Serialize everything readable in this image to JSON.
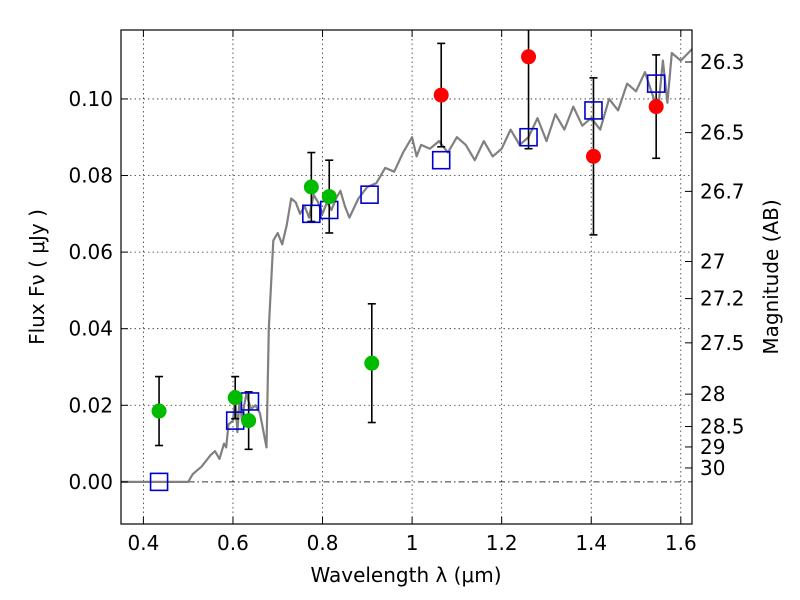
{
  "chart_data": {
    "type": "scatter",
    "xlabel": "Wavelength  λ (μm)",
    "ylabel": "Flux  Fν  ( μJy )",
    "y2label": "Magnitude (AB)",
    "xlim": [
      0.35,
      1.625
    ],
    "ylim": [
      -0.011,
      0.118
    ],
    "grid": true,
    "x_ticks": [
      {
        "value": 0.4,
        "label": "0.4"
      },
      {
        "value": 0.6,
        "label": "0.6"
      },
      {
        "value": 0.8,
        "label": "0.8"
      },
      {
        "value": 1.0,
        "label": "1"
      },
      {
        "value": 1.2,
        "label": "1.2"
      },
      {
        "value": 1.4,
        "label": "1.4"
      },
      {
        "value": 1.6,
        "label": "1.6"
      }
    ],
    "y_ticks": [
      {
        "value": 0.0,
        "label": "0.00"
      },
      {
        "value": 0.02,
        "label": "0.02"
      },
      {
        "value": 0.04,
        "label": "0.04"
      },
      {
        "value": 0.06,
        "label": "0.06"
      },
      {
        "value": 0.08,
        "label": "0.08"
      },
      {
        "value": 0.1,
        "label": "0.10"
      }
    ],
    "magnitude_ticks": [
      {
        "mag": 26.3,
        "label": "26.3"
      },
      {
        "mag": 26.5,
        "label": "26.5"
      },
      {
        "mag": 26.7,
        "label": "26.7"
      },
      {
        "mag": 27.0,
        "label": "27"
      },
      {
        "mag": 27.2,
        "label": "27.2"
      },
      {
        "mag": 27.5,
        "label": "27.5"
      },
      {
        "mag": 28.0,
        "label": "28"
      },
      {
        "mag": 28.5,
        "label": "28.5"
      },
      {
        "mag": 29.0,
        "label": "29"
      },
      {
        "mag": 30.0,
        "label": "30"
      }
    ],
    "colors": {
      "model": "#808080",
      "green": "#00bb00",
      "red": "#ff0000",
      "square": "#0000cc",
      "errorbar": "#000000"
    },
    "model_spectrum": {
      "x": [
        0.35,
        0.5,
        0.51,
        0.53,
        0.55,
        0.56,
        0.57,
        0.58,
        0.585,
        0.59,
        0.6,
        0.605,
        0.61,
        0.615,
        0.62,
        0.625,
        0.63,
        0.64,
        0.65,
        0.66,
        0.665,
        0.67,
        0.675,
        0.68,
        0.69,
        0.7,
        0.71,
        0.72,
        0.73,
        0.74,
        0.75,
        0.76,
        0.77,
        0.78,
        0.79,
        0.8,
        0.81,
        0.82,
        0.83,
        0.84,
        0.85,
        0.86,
        0.88,
        0.9,
        0.92,
        0.94,
        0.96,
        0.98,
        1.0,
        1.01,
        1.02,
        1.04,
        1.06,
        1.08,
        1.1,
        1.12,
        1.14,
        1.16,
        1.18,
        1.2,
        1.22,
        1.24,
        1.26,
        1.28,
        1.3,
        1.32,
        1.34,
        1.36,
        1.38,
        1.4,
        1.42,
        1.44,
        1.46,
        1.48,
        1.5,
        1.52,
        1.54,
        1.55,
        1.56,
        1.57,
        1.58,
        1.6,
        1.625
      ],
      "y": [
        0.0,
        0.0,
        0.002,
        0.004,
        0.007,
        0.008,
        0.006,
        0.01,
        0.009,
        0.015,
        0.016,
        0.022,
        0.013,
        0.022,
        0.016,
        0.02,
        0.023,
        0.019,
        0.02,
        0.018,
        0.015,
        0.012,
        0.009,
        0.04,
        0.063,
        0.065,
        0.062,
        0.067,
        0.074,
        0.073,
        0.07,
        0.072,
        0.069,
        0.075,
        0.073,
        0.07,
        0.073,
        0.071,
        0.074,
        0.076,
        0.072,
        0.069,
        0.074,
        0.077,
        0.078,
        0.082,
        0.081,
        0.086,
        0.09,
        0.085,
        0.088,
        0.087,
        0.089,
        0.086,
        0.09,
        0.088,
        0.084,
        0.089,
        0.085,
        0.087,
        0.092,
        0.088,
        0.09,
        0.095,
        0.089,
        0.096,
        0.092,
        0.098,
        0.093,
        0.095,
        0.092,
        0.1,
        0.097,
        0.104,
        0.102,
        0.107,
        0.1,
        0.098,
        0.11,
        0.099,
        0.112,
        0.11,
        0.113
      ]
    },
    "green_points": [
      {
        "x": 0.435,
        "y": 0.0185,
        "err": 0.009
      },
      {
        "x": 0.605,
        "y": 0.022,
        "err": 0.0055
      },
      {
        "x": 0.635,
        "y": 0.016,
        "err": 0.0075
      },
      {
        "x": 0.775,
        "y": 0.077,
        "err": 0.009
      },
      {
        "x": 0.815,
        "y": 0.0745,
        "err": 0.0095
      },
      {
        "x": 0.91,
        "y": 0.031,
        "err": 0.0155
      }
    ],
    "red_points": [
      {
        "x": 1.065,
        "y": 0.101,
        "err": 0.0135
      },
      {
        "x": 1.26,
        "y": 0.111,
        "err": 0.024
      },
      {
        "x": 1.405,
        "y": 0.085,
        "err": 0.0205
      },
      {
        "x": 1.545,
        "y": 0.098,
        "err": 0.0135
      }
    ],
    "model_squares": [
      {
        "x": 0.435,
        "y": 0.0
      },
      {
        "x": 0.605,
        "y": 0.016
      },
      {
        "x": 0.638,
        "y": 0.021
      },
      {
        "x": 0.775,
        "y": 0.07
      },
      {
        "x": 0.815,
        "y": 0.071
      },
      {
        "x": 0.905,
        "y": 0.075
      },
      {
        "x": 1.065,
        "y": 0.084
      },
      {
        "x": 1.26,
        "y": 0.09
      },
      {
        "x": 1.405,
        "y": 0.097
      },
      {
        "x": 1.545,
        "y": 0.104
      }
    ]
  }
}
